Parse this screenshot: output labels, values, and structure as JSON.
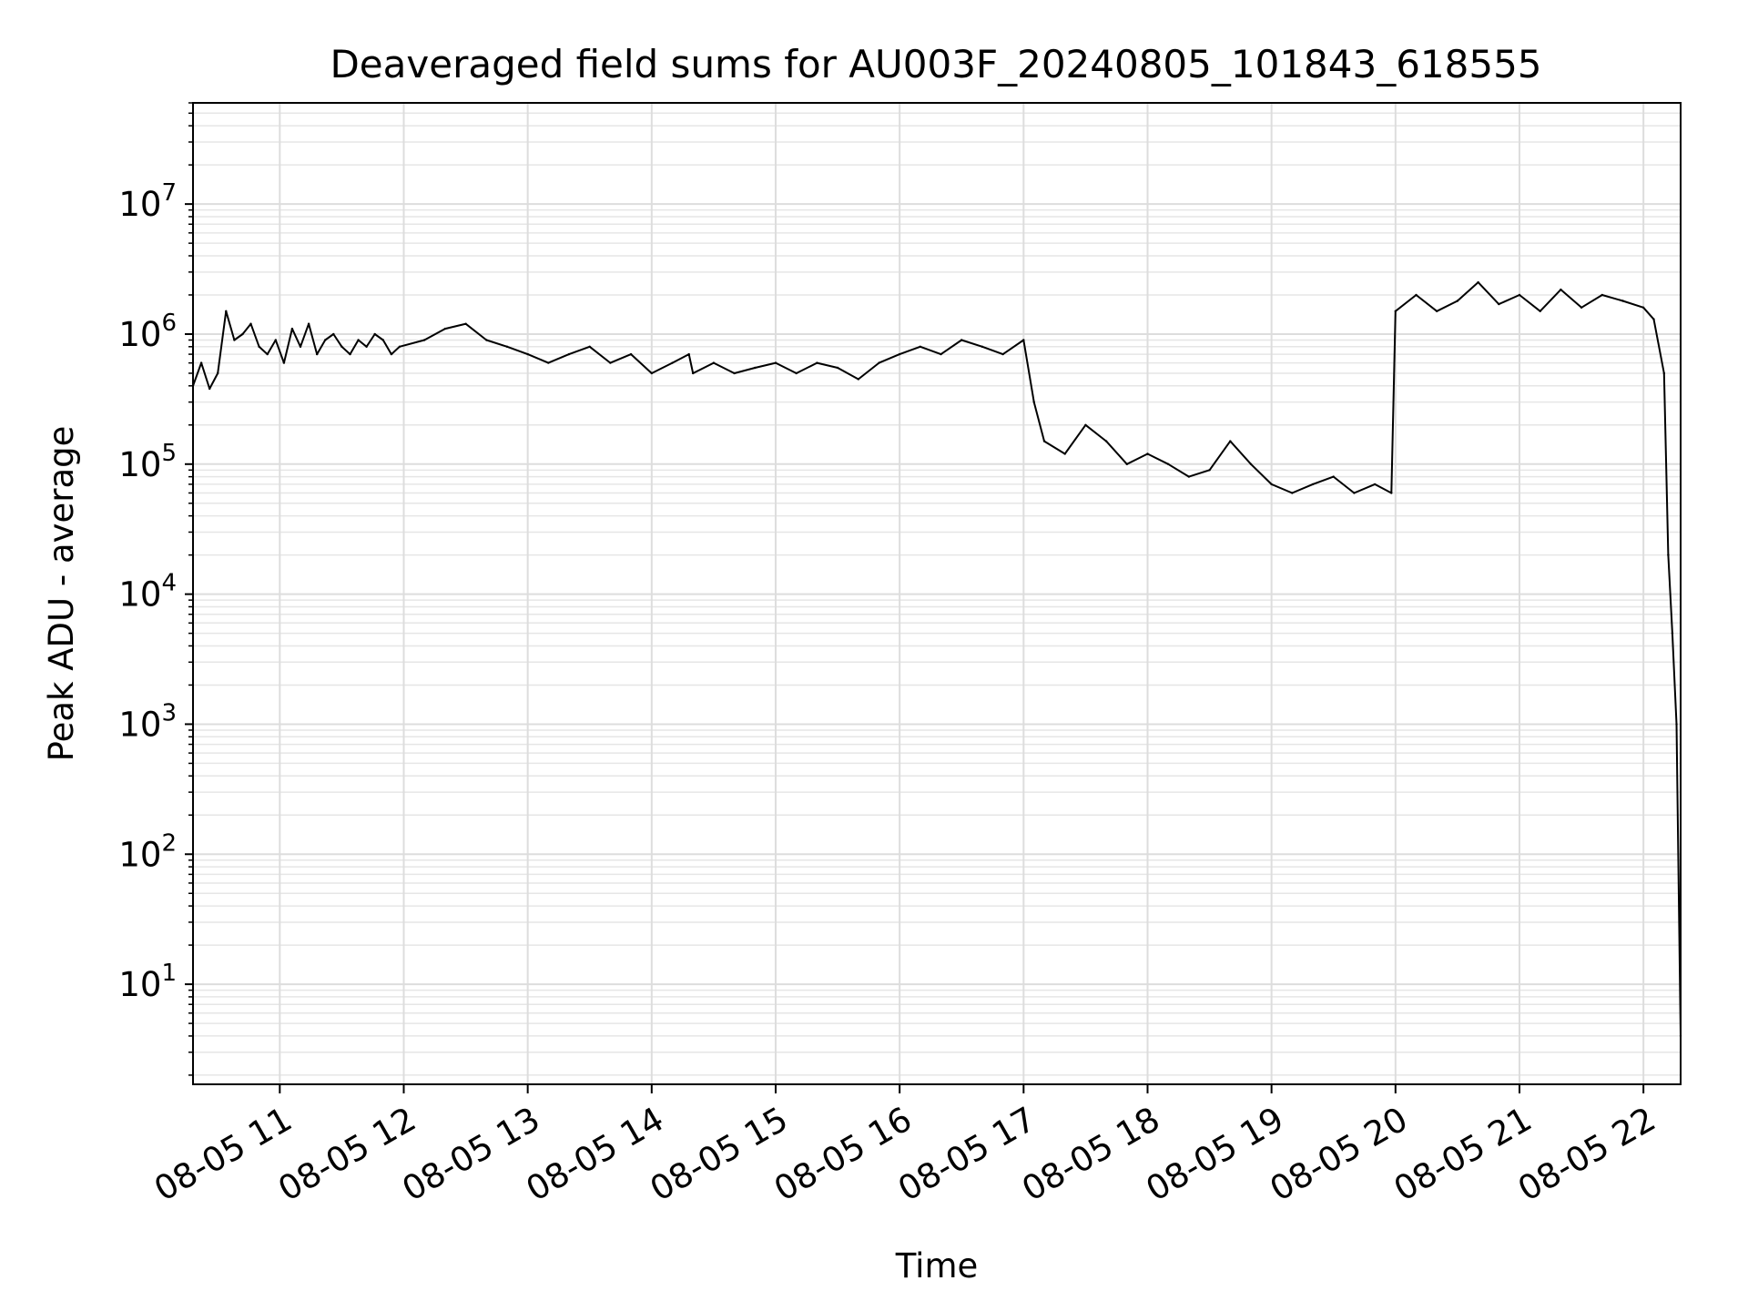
{
  "chart_data": {
    "type": "line",
    "title": "Deaveraged field sums for AU003F_20240805_101843_618555",
    "xlabel": "Time",
    "ylabel": "Peak ADU - average",
    "y_scale": "log",
    "ylim": [
      1.7,
      60000000
    ],
    "xlim": [
      "08-05 10:18",
      "08-05 22:18"
    ],
    "grid": "major and minor, light gray",
    "line_color": "#000000",
    "x_ticks": [
      "08-05 11",
      "08-05 12",
      "08-05 13",
      "08-05 14",
      "08-05 15",
      "08-05 16",
      "08-05 17",
      "08-05 18",
      "08-05 19",
      "08-05 20",
      "08-05 21",
      "08-05 22"
    ],
    "y_ticks": [
      {
        "value": 10,
        "base": "10",
        "exp": "1"
      },
      {
        "value": 100,
        "base": "10",
        "exp": "2"
      },
      {
        "value": 1000,
        "base": "10",
        "exp": "3"
      },
      {
        "value": 10000,
        "base": "10",
        "exp": "4"
      },
      {
        "value": 100000,
        "base": "10",
        "exp": "5"
      },
      {
        "value": 1000000,
        "base": "10",
        "exp": "6"
      },
      {
        "value": 10000000,
        "base": "10",
        "exp": "7"
      }
    ],
    "series": [
      {
        "x": [
          "08-05 10:18",
          "08-05 10:22",
          "08-05 10:26",
          "08-05 10:30",
          "08-05 10:34",
          "08-05 10:38",
          "08-05 10:42",
          "08-05 10:46",
          "08-05 10:50",
          "08-05 10:54",
          "08-05 10:58",
          "08-05 11:02",
          "08-05 11:06",
          "08-05 11:10",
          "08-05 11:14",
          "08-05 11:18",
          "08-05 11:22",
          "08-05 11:26",
          "08-05 11:30",
          "08-05 11:34",
          "08-05 11:38",
          "08-05 11:42",
          "08-05 11:46",
          "08-05 11:50",
          "08-05 11:54",
          "08-05 11:58",
          "08-05 12:10",
          "08-05 12:20",
          "08-05 12:30",
          "08-05 12:40",
          "08-05 12:50",
          "08-05 13:00",
          "08-05 13:10",
          "08-05 13:20",
          "08-05 13:30",
          "08-05 13:40",
          "08-05 13:50",
          "08-05 14:00",
          "08-05 14:10",
          "08-05 14:18",
          "08-05 14:20",
          "08-05 14:30",
          "08-05 14:40",
          "08-05 14:50",
          "08-05 15:00",
          "08-05 15:10",
          "08-05 15:20",
          "08-05 15:30",
          "08-05 15:40",
          "08-05 15:50",
          "08-05 16:00",
          "08-05 16:10",
          "08-05 16:20",
          "08-05 16:30",
          "08-05 16:40",
          "08-05 16:50",
          "08-05 17:00",
          "08-05 17:05",
          "08-05 17:10",
          "08-05 17:20",
          "08-05 17:30",
          "08-05 17:40",
          "08-05 17:50",
          "08-05 18:00",
          "08-05 18:10",
          "08-05 18:20",
          "08-05 18:30",
          "08-05 18:40",
          "08-05 18:50",
          "08-05 19:00",
          "08-05 19:10",
          "08-05 19:20",
          "08-05 19:30",
          "08-05 19:40",
          "08-05 19:50",
          "08-05 19:58",
          "08-05 20:00",
          "08-05 20:10",
          "08-05 20:20",
          "08-05 20:30",
          "08-05 20:40",
          "08-05 20:50",
          "08-05 21:00",
          "08-05 21:10",
          "08-05 21:20",
          "08-05 21:30",
          "08-05 21:40",
          "08-05 21:50",
          "08-05 22:00",
          "08-05 22:05",
          "08-05 22:10",
          "08-05 22:12",
          "08-05 22:14",
          "08-05 22:16",
          "08-05 22:18"
        ],
        "y": [
          400000,
          600000,
          380000,
          500000,
          1500000,
          900000,
          1000000,
          1200000,
          800000,
          700000,
          900000,
          600000,
          1100000,
          800000,
          1200000,
          700000,
          900000,
          1000000,
          800000,
          700000,
          900000,
          800000,
          1000000,
          900000,
          700000,
          800000,
          900000,
          1100000,
          1200000,
          900000,
          800000,
          700000,
          600000,
          700000,
          800000,
          600000,
          700000,
          500000,
          600000,
          700000,
          500000,
          600000,
          500000,
          550000,
          600000,
          500000,
          600000,
          550000,
          450000,
          600000,
          700000,
          800000,
          700000,
          900000,
          800000,
          700000,
          900000,
          300000,
          150000,
          120000,
          200000,
          150000,
          100000,
          120000,
          100000,
          80000,
          90000,
          150000,
          100000,
          70000,
          60000,
          70000,
          80000,
          60000,
          70000,
          60000,
          1500000,
          2000000,
          1500000,
          1800000,
          2500000,
          1700000,
          2000000,
          1500000,
          2200000,
          1600000,
          2000000,
          1800000,
          1600000,
          1300000,
          500000,
          20000,
          5000,
          1000,
          4
        ]
      }
    ]
  }
}
